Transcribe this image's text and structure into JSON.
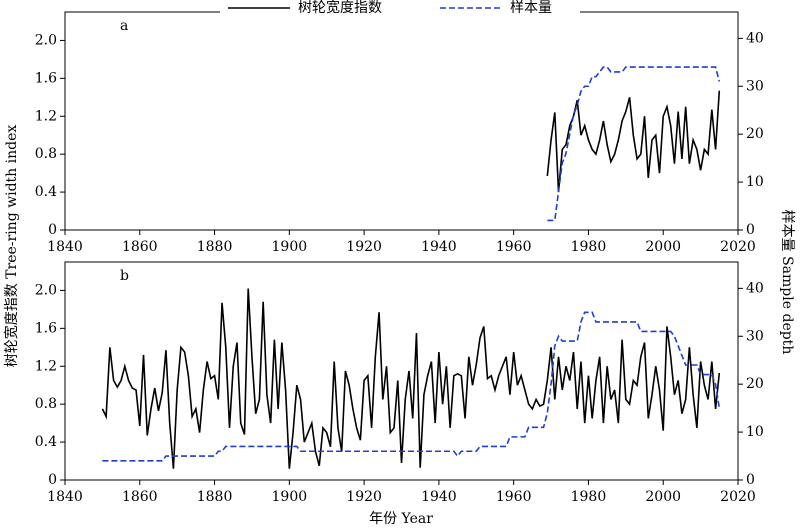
{
  "chart_data": [
    {
      "type": "line",
      "label": "a",
      "x": [
        1969,
        1970,
        1971,
        1972,
        1973,
        1974,
        1975,
        1976,
        1977,
        1978,
        1979,
        1980,
        1981,
        1982,
        1983,
        1984,
        1985,
        1986,
        1987,
        1988,
        1989,
        1990,
        1991,
        1992,
        1993,
        1994,
        1995,
        1996,
        1997,
        1998,
        1999,
        2000,
        2001,
        2002,
        2003,
        2004,
        2005,
        2006,
        2007,
        2008,
        2009,
        2010,
        2011,
        2012,
        2013,
        2014,
        2015
      ],
      "series": [
        {
          "name": "树轮宽度指数",
          "color": "#000000",
          "style": "solid",
          "values": [
            0.57,
            0.95,
            1.24,
            0.4,
            0.85,
            0.9,
            1.1,
            1.2,
            1.37,
            1.0,
            1.1,
            0.95,
            0.85,
            0.8,
            0.95,
            1.15,
            0.9,
            0.72,
            0.8,
            0.95,
            1.15,
            1.25,
            1.4,
            1.0,
            0.75,
            0.8,
            1.2,
            0.55,
            0.95,
            1.0,
            0.6,
            1.2,
            1.3,
            1.1,
            0.7,
            1.25,
            0.75,
            1.3,
            0.7,
            0.95,
            0.85,
            0.63,
            0.85,
            0.8,
            1.27,
            0.85,
            1.47
          ]
        },
        {
          "name": "样本量",
          "color": "#1f3fd0",
          "style": "dashed",
          "axis": "y2",
          "values": [
            2,
            2,
            2,
            8,
            14,
            16,
            20,
            24,
            26,
            29,
            30,
            30,
            32,
            32,
            33,
            34,
            34,
            33,
            33,
            33,
            33,
            34,
            34,
            34,
            34,
            34,
            34,
            34,
            34,
            34,
            34,
            34,
            34,
            34,
            34,
            34,
            34,
            34,
            34,
            34,
            34,
            34,
            34,
            34,
            34,
            34,
            31
          ]
        }
      ],
      "xlim": [
        1840,
        2020
      ],
      "xticks": [
        1840,
        1860,
        1880,
        1900,
        1920,
        1940,
        1960,
        1980,
        2000,
        2020
      ],
      "ylim": [
        0,
        2.3
      ],
      "yticks": [
        0,
        0.4,
        0.8,
        1.2,
        1.6,
        {
          "value": 2,
          "label": "2.0"
        }
      ],
      "y2lim": [
        0,
        45.5
      ],
      "y2ticks": [
        0,
        10,
        20,
        30,
        40
      ]
    },
    {
      "type": "line",
      "label": "b",
      "x_label": "年份 Year",
      "y_label": "树轮宽度指数 Tree-ring width index",
      "y2_label": "样本量 Sample depth",
      "x": [
        1850,
        1851,
        1852,
        1853,
        1854,
        1855,
        1856,
        1857,
        1858,
        1859,
        1860,
        1861,
        1862,
        1863,
        1864,
        1865,
        1866,
        1867,
        1868,
        1869,
        1870,
        1871,
        1872,
        1873,
        1874,
        1875,
        1876,
        1877,
        1878,
        1879,
        1880,
        1881,
        1882,
        1883,
        1884,
        1885,
        1886,
        1887,
        1888,
        1889,
        1890,
        1891,
        1892,
        1893,
        1894,
        1895,
        1896,
        1897,
        1898,
        1899,
        1900,
        1901,
        1902,
        1903,
        1904,
        1905,
        1906,
        1907,
        1908,
        1909,
        1910,
        1911,
        1912,
        1913,
        1914,
        1915,
        1916,
        1917,
        1918,
        1919,
        1920,
        1921,
        1922,
        1923,
        1924,
        1925,
        1926,
        1927,
        1928,
        1929,
        1930,
        1931,
        1932,
        1933,
        1934,
        1935,
        1936,
        1937,
        1938,
        1939,
        1940,
        1941,
        1942,
        1943,
        1944,
        1945,
        1946,
        1947,
        1948,
        1949,
        1950,
        1951,
        1952,
        1953,
        1954,
        1955,
        1956,
        1957,
        1958,
        1959,
        1960,
        1961,
        1962,
        1963,
        1964,
        1965,
        1966,
        1967,
        1968,
        1969,
        1970,
        1971,
        1972,
        1973,
        1974,
        1975,
        1976,
        1977,
        1978,
        1979,
        1980,
        1981,
        1982,
        1983,
        1984,
        1985,
        1986,
        1987,
        1988,
        1989,
        1990,
        1991,
        1992,
        1993,
        1994,
        1995,
        1996,
        1997,
        1998,
        1999,
        2000,
        2001,
        2002,
        2003,
        2004,
        2005,
        2006,
        2007,
        2008,
        2009,
        2010,
        2011,
        2012,
        2013,
        2014,
        2015
      ],
      "series": [
        {
          "color": "#000000",
          "style": "solid",
          "values": [
            0.75,
            0.67,
            1.4,
            1.05,
            0.98,
            1.05,
            1.2,
            1.05,
            0.97,
            0.95,
            0.57,
            1.32,
            0.47,
            0.75,
            0.97,
            0.73,
            0.92,
            1.37,
            0.6,
            0.12,
            0.95,
            1.4,
            1.35,
            1.1,
            0.67,
            0.75,
            0.5,
            0.95,
            1.25,
            1.07,
            1.1,
            0.85,
            1.87,
            1.4,
            0.55,
            1.2,
            1.45,
            0.6,
            0.48,
            2.02,
            1.3,
            0.7,
            0.85,
            1.88,
            0.9,
            0.6,
            1.48,
            0.75,
            1.45,
            0.95,
            0.12,
            0.5,
            1.0,
            0.85,
            0.4,
            0.5,
            0.6,
            0.3,
            0.15,
            0.55,
            0.5,
            0.35,
            1.25,
            0.55,
            0.3,
            1.15,
            1.0,
            0.75,
            0.55,
            0.42,
            1.05,
            1.1,
            0.55,
            1.3,
            1.77,
            0.85,
            1.2,
            0.5,
            0.55,
            1.05,
            0.18,
            0.85,
            1.15,
            0.65,
            1.55,
            0.13,
            0.9,
            1.1,
            1.25,
            0.6,
            1.35,
            0.8,
            1.2,
            0.55,
            1.1,
            1.12,
            1.1,
            0.65,
            1.3,
            1.0,
            1.22,
            1.5,
            1.62,
            1.07,
            1.1,
            0.95,
            1.1,
            1.2,
            1.3,
            0.9,
            1.35,
            1.0,
            1.1,
            0.95,
            0.8,
            0.75,
            0.85,
            0.78,
            0.8,
            1.05,
            1.4,
            0.85,
            1.3,
            0.95,
            1.2,
            1.05,
            1.35,
            0.75,
            1.25,
            0.6,
            1.1,
            0.65,
            1.05,
            1.3,
            0.6,
            1.2,
            0.85,
            0.95,
            0.6,
            1.48,
            0.85,
            0.8,
            1.05,
            1.0,
            1.3,
            1.45,
            0.65,
            0.9,
            1.2,
            0.95,
            0.52,
            1.62,
            1.3,
            0.9,
            1.05,
            0.7,
            0.85,
            1.4,
            0.9,
            0.55,
            1.25,
            1.0,
            0.85,
            1.25,
            0.75,
            1.13
          ]
        },
        {
          "color": "#1f3fd0",
          "style": "dashed",
          "axis": "y2",
          "values": [
            4,
            4,
            4,
            4,
            4,
            4,
            4,
            4,
            4,
            4,
            4,
            4,
            4,
            4,
            4,
            4,
            4,
            5,
            5,
            5,
            5,
            5,
            5,
            5,
            5,
            5,
            5,
            5,
            5,
            5,
            5,
            6,
            6,
            7,
            7,
            7,
            7,
            7,
            7,
            7,
            7,
            7,
            7,
            7,
            7,
            7,
            7,
            7,
            7,
            7,
            7,
            7,
            7,
            6,
            6,
            6,
            6,
            6,
            6,
            6,
            6,
            6,
            6,
            6,
            6,
            6,
            6,
            6,
            6,
            6,
            6,
            6,
            6,
            6,
            6,
            6,
            6,
            6,
            6,
            6,
            6,
            6,
            6,
            6,
            6,
            6,
            6,
            6,
            6,
            6,
            6,
            6,
            6,
            6,
            6,
            5,
            6,
            6,
            6,
            6,
            6,
            7,
            7,
            7,
            7,
            7,
            7,
            7,
            7,
            9,
            9,
            9,
            9,
            9,
            11,
            11,
            11,
            11,
            11,
            14,
            20,
            28,
            30,
            29,
            29,
            29,
            29,
            29,
            33,
            35,
            35,
            35,
            33,
            33,
            33,
            33,
            33,
            33,
            33,
            33,
            33,
            33,
            33,
            33,
            31,
            31,
            31,
            31,
            31,
            31,
            31,
            31,
            31,
            30,
            28,
            26,
            24,
            24,
            24,
            24,
            22,
            22,
            22,
            22,
            20,
            15
          ]
        }
      ],
      "xlim": [
        1840,
        2020
      ],
      "xticks": [
        1840,
        1860,
        1880,
        1900,
        1920,
        1940,
        1960,
        1980,
        2000,
        2020
      ],
      "ylim": [
        0,
        2.3
      ],
      "yticks": [
        0,
        0.4,
        0.8,
        1.2,
        1.6,
        {
          "value": 2,
          "label": "2.0"
        }
      ],
      "y2lim": [
        0,
        45.5
      ],
      "y2ticks": [
        0,
        10,
        20,
        30,
        40
      ]
    }
  ]
}
